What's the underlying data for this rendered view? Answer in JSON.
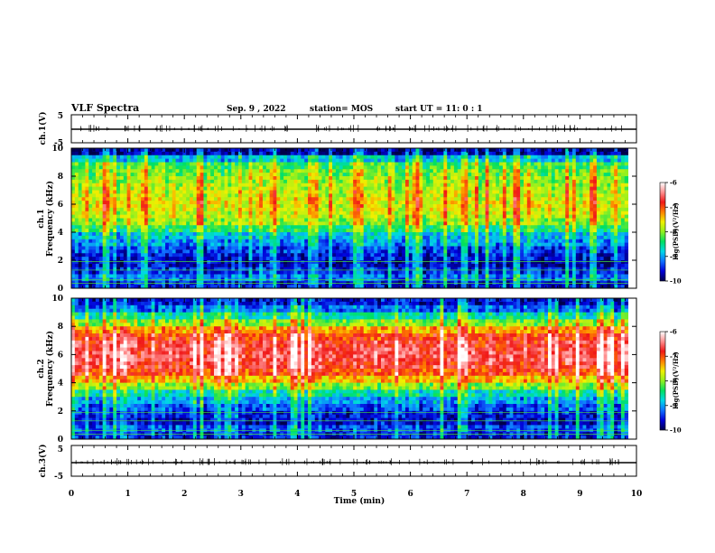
{
  "header": {
    "title": "VLF Spectra",
    "date": "Sep. 9 , 2022",
    "station": "station= MOS",
    "start": "start  UT =   11: 0  : 1"
  },
  "colors": {
    "background": "#ffffff",
    "frame": "#000000",
    "colormap": [
      "#00004a",
      "#0000d8",
      "#1070ff",
      "#00d8e8",
      "#00e060",
      "#90f020",
      "#f0f000",
      "#ff8000",
      "#f01818",
      "#ff9090",
      "#ffffff"
    ]
  },
  "chart_data": [
    {
      "type": "line",
      "name": "ch1-waveform",
      "ylabel": "ch.1(V)",
      "yticks": [
        "5",
        "-5"
      ],
      "ylim": [
        -5,
        5
      ],
      "xlim": [
        0,
        10
      ],
      "x": [
        0,
        10
      ],
      "y": [
        0,
        0
      ]
    },
    {
      "type": "heatmap",
      "name": "ch1-spectrogram",
      "ylabel": "ch.1\nFrequency (kHz)",
      "ylabel_lines": [
        "ch.1",
        "Frequency (kHz)"
      ],
      "yticks": [
        "0",
        "2",
        "4",
        "6",
        "8",
        "10"
      ],
      "ylim": [
        0,
        10
      ],
      "xlim": [
        0,
        10
      ],
      "x_end": 9.85,
      "frequency_bands_khz": [
        0,
        0.5,
        1,
        1.5,
        2,
        2.5,
        3,
        3.5,
        4,
        4.5,
        5,
        5.5,
        6,
        6.5,
        7,
        7.5,
        8,
        8.5,
        9,
        9.5,
        10
      ],
      "typical_log_psd": [
        -9.6,
        -9.2,
        -9.5,
        -9.7,
        -9.6,
        -9.4,
        -9.1,
        -8.9,
        -8.4,
        -8.0,
        -7.8,
        -7.7,
        -7.7,
        -7.8,
        -7.9,
        -8.0,
        -8.1,
        -8.3,
        -8.9,
        -9.8
      ],
      "colorbar": {
        "label": "log(PSD)(V²/Hz)",
        "ticks": [
          "-6",
          "-7",
          "-8",
          "-9",
          "-10"
        ],
        "range": [
          -10,
          -6
        ]
      }
    },
    {
      "type": "heatmap",
      "name": "ch2-spectrogram",
      "ylabel": "ch.2\nFrequency (kHz)",
      "ylabel_lines": [
        "ch.2",
        "Frequency (kHz)"
      ],
      "yticks": [
        "0",
        "2",
        "4",
        "6",
        "8",
        "10"
      ],
      "ylim": [
        0,
        10
      ],
      "xlim": [
        0,
        10
      ],
      "x_end": 9.85,
      "frequency_bands_khz": [
        0,
        0.5,
        1,
        1.5,
        2,
        2.5,
        3,
        3.5,
        4,
        4.5,
        5,
        5.5,
        6,
        6.5,
        7,
        7.5,
        8,
        8.5,
        9,
        9.5,
        10
      ],
      "typical_log_psd": [
        -9.5,
        -9.3,
        -9.6,
        -9.5,
        -9.3,
        -9.0,
        -8.6,
        -8.0,
        -7.4,
        -6.9,
        -6.7,
        -6.6,
        -6.6,
        -6.7,
        -6.9,
        -7.3,
        -8.0,
        -8.6,
        -9.2,
        -9.6
      ],
      "colorbar": {
        "label": "log(PSD)(V²/Hz)",
        "ticks": [
          "-6",
          "-7",
          "-8",
          "-9",
          "-10"
        ],
        "range": [
          -10,
          -6
        ]
      }
    },
    {
      "type": "line",
      "name": "ch3-waveform",
      "ylabel": "ch.3(V)",
      "yticks": [
        "5",
        "-5"
      ],
      "ylim": [
        -5,
        5
      ],
      "xlim": [
        0,
        10
      ],
      "x": [
        0,
        10
      ],
      "y": [
        0,
        0
      ]
    }
  ],
  "xaxis": {
    "label": "Time (min)",
    "ticks": [
      "0",
      "1",
      "2",
      "3",
      "4",
      "5",
      "6",
      "7",
      "8",
      "9",
      "10"
    ],
    "range": [
      0,
      10
    ]
  }
}
